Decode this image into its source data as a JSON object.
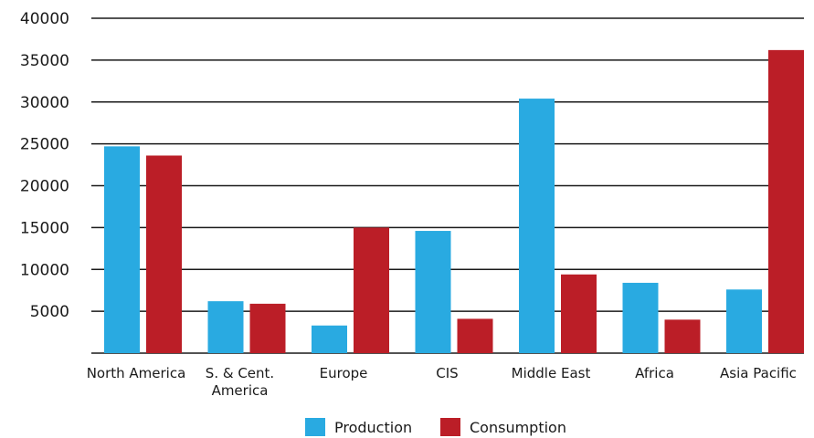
{
  "chart_data": {
    "type": "bar",
    "categories": [
      [
        "North America"
      ],
      [
        "S. & Cent.",
        "America"
      ],
      [
        "Europe"
      ],
      [
        "CIS"
      ],
      [
        "Middle East"
      ],
      [
        "Africa"
      ],
      [
        "Asia Pacific"
      ]
    ],
    "series": [
      {
        "name": "Production",
        "color": "#29aae1",
        "values": [
          24700,
          6200,
          3300,
          14600,
          30400,
          8400,
          7600
        ]
      },
      {
        "name": "Consumption",
        "color": "#bb1e27",
        "values": [
          23600,
          5900,
          15000,
          4100,
          9400,
          4000,
          36200
        ]
      }
    ],
    "yticks": [
      5000,
      10000,
      15000,
      20000,
      25000,
      30000,
      35000,
      40000
    ],
    "ylim": [
      0,
      40000
    ],
    "grid": true,
    "legend_position": "bottom-center"
  }
}
